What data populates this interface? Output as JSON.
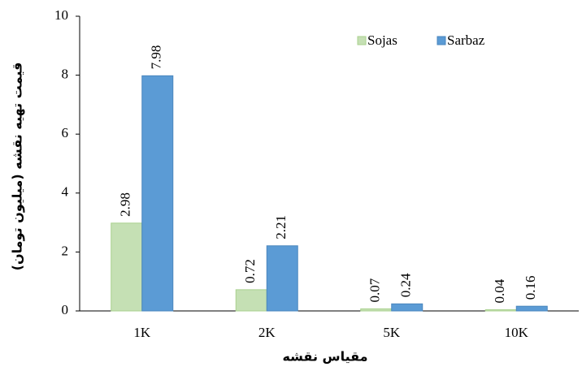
{
  "chart_data": {
    "type": "bar",
    "y_label": "قیمت تهیه نقشه (میلیون تومان)",
    "x_label": "مقیاس نقشه",
    "categories": [
      "1K",
      "2K",
      "5K",
      "10K"
    ],
    "series": [
      {
        "name": "Sojas",
        "color": "#c5e0b4",
        "values": [
          2.98,
          0.72,
          0.07,
          0.04
        ]
      },
      {
        "name": "Sarbaz",
        "color": "#5b9bd5",
        "values": [
          7.98,
          2.21,
          0.24,
          0.16
        ]
      }
    ],
    "ylim": [
      0,
      10
    ],
    "yticks": [
      0,
      2,
      4,
      6,
      8,
      10
    ],
    "grid": false,
    "legend": "top-right"
  }
}
